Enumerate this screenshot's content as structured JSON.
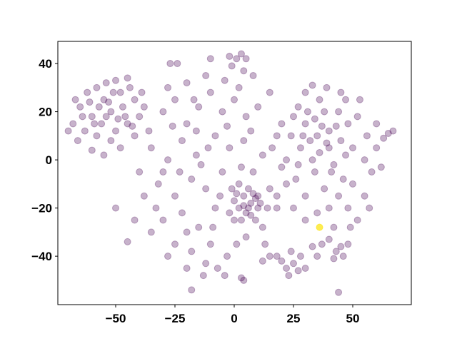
{
  "chart_data": {
    "type": "scatter",
    "xlim": [
      -74.4,
      74.7
    ],
    "ylim": [
      -60.1,
      49.2
    ],
    "xticks": [
      {
        "value": -50,
        "label": "−50"
      },
      {
        "value": -25,
        "label": "−25"
      },
      0,
      25,
      50
    ],
    "yticks": [
      {
        "value": -40,
        "label": "−40"
      },
      {
        "value": -20,
        "label": "−20"
      },
      0,
      20,
      40
    ],
    "series": [
      {
        "color": "#440154",
        "alpha": 0.3,
        "x": [
          -52,
          -55,
          -48,
          -60,
          -45,
          -58,
          -50,
          -65,
          -62,
          -54,
          -47,
          -42,
          -40,
          -56,
          -63,
          -68,
          -52,
          -44,
          -58,
          -50,
          -66,
          -60,
          -55,
          -48,
          -42,
          -38,
          -46,
          -53,
          -57,
          -61,
          -49,
          -64,
          -70,
          -67,
          -59,
          -51,
          -45,
          -43,
          -39,
          -54,
          -30,
          -25,
          -20,
          -15,
          -10,
          -5,
          0,
          5,
          10,
          15,
          -35,
          -28,
          -22,
          -16,
          -8,
          -2,
          4,
          12,
          18,
          -32,
          -25,
          -18,
          -12,
          -5,
          2,
          8,
          15,
          20,
          -30,
          -22,
          -15,
          -8,
          0,
          6,
          12,
          -25,
          -18,
          -10,
          -3,
          5,
          -20,
          -12,
          -28,
          -35,
          -38,
          -40,
          -36,
          -28,
          -20,
          -12,
          -4,
          2,
          8,
          -24,
          -30,
          -14,
          -6,
          3,
          10,
          16,
          -20,
          -9,
          1,
          -16,
          -3,
          7,
          -26,
          -33,
          -23,
          -11,
          -1,
          9,
          14,
          18,
          -17,
          -7,
          -13,
          -4,
          13,
          -42,
          4,
          7,
          2,
          9,
          5,
          0,
          10,
          6,
          3,
          8,
          -2,
          11,
          4,
          7,
          1,
          35,
          30,
          40,
          28,
          38,
          45,
          33,
          25,
          42,
          48,
          36,
          30,
          24,
          40,
          32,
          37,
          44,
          27,
          34,
          46,
          50,
          52,
          22,
          20,
          26,
          38,
          30,
          44,
          50,
          55,
          56,
          53,
          45,
          39,
          33,
          27,
          41,
          47,
          31,
          36,
          29,
          43,
          39,
          34,
          48,
          40,
          35,
          55,
          52,
          58,
          22,
          18,
          25,
          30,
          57,
          62,
          60,
          47,
          49,
          42,
          20,
          22,
          25,
          18,
          24,
          28,
          23,
          15,
          30,
          27,
          45,
          48,
          43,
          46,
          42,
          40,
          33,
          37,
          35,
          12,
          -2,
          1,
          3,
          5,
          -1,
          -10,
          -27,
          4,
          -18,
          44,
          65,
          67,
          63,
          60,
          3,
          4,
          -45,
          -50
        ],
        "values": [
          20,
          25,
          28,
          18,
          15,
          10,
          12,
          22,
          28,
          32,
          22,
          25,
          18,
          15,
          12,
          15,
          8,
          30,
          30,
          33,
          8,
          4,
          2,
          5,
          10,
          22,
          18,
          24,
          22,
          24,
          17,
          18,
          12,
          25,
          15,
          28,
          34,
          14,
          28,
          18,
          20,
          25,
          15,
          22,
          28,
          20,
          25,
          18,
          22,
          28,
          5,
          0,
          8,
          2,
          10,
          5,
          8,
          2,
          10,
          -10,
          -15,
          -8,
          -12,
          -5,
          -10,
          -5,
          -12,
          -3,
          -25,
          -22,
          -28,
          -20,
          -25,
          -20,
          -28,
          -35,
          -38,
          -35,
          -40,
          -32,
          -45,
          -43,
          -40,
          -30,
          -15,
          -5,
          12,
          30,
          32,
          35,
          33,
          30,
          35,
          40,
          -5,
          -2,
          -15,
          -3,
          -15,
          5,
          -30,
          -28,
          -35,
          12,
          14,
          12,
          14,
          -20,
          -5,
          5,
          -12,
          -25,
          -20,
          -20,
          25,
          -45,
          -48,
          -48,
          -35,
          -25,
          -15,
          -18,
          -20,
          -16,
          -22,
          -17,
          -20,
          -12,
          -25,
          -14,
          -22,
          -18,
          -19,
          -23,
          -14,
          10,
          15,
          12,
          5,
          20,
          8,
          0,
          18,
          -2,
          15,
          25,
          28,
          10,
          5,
          8,
          14,
          20,
          22,
          -5,
          -8,
          5,
          18,
          0,
          15,
          -8,
          -12,
          -15,
          -15,
          -10,
          0,
          10,
          25,
          28,
          30,
          31,
          -2,
          -5,
          2,
          20,
          3,
          10,
          14,
          7,
          17,
          -20,
          -20,
          -22,
          -15,
          -25,
          -5,
          -10,
          -15,
          -20,
          -25,
          -20,
          -3,
          5,
          25,
          -28,
          -28,
          -42,
          -45,
          -43,
          -40,
          -38,
          -40,
          -48,
          -40,
          -45,
          -46,
          -36,
          -35,
          -38,
          -40,
          -41,
          -33,
          -36,
          -35,
          -40,
          -42,
          43,
          42,
          44,
          42,
          39,
          42,
          40,
          37,
          -54,
          -55,
          11,
          12,
          9,
          15,
          -49,
          -50,
          -34,
          -20
        ]
      },
      {
        "color": "#fde725",
        "alpha": 0.8,
        "x": [
          36
        ],
        "values": [
          -28
        ]
      }
    ]
  }
}
